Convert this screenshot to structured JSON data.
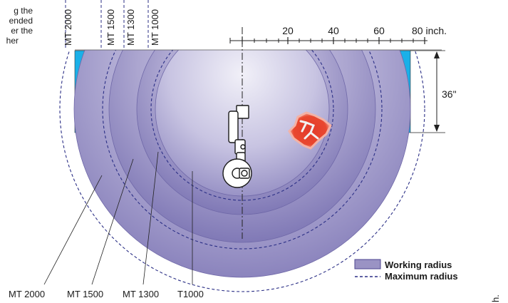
{
  "note_lines": [
    "g the",
    "ended",
    "er the",
    "her"
  ],
  "top_labels": [
    "MT 2000",
    "MT 1500",
    "MT 1300",
    "MT 1000"
  ],
  "scale": {
    "ticks": [
      "20",
      "40",
      "60",
      "80 inch."
    ]
  },
  "height_label": "36\"",
  "callouts": [
    "MT 2000",
    "MT 1500",
    "MT 1300",
    "T1000"
  ],
  "legend": {
    "working": "Working radius",
    "maximum": "Maximum radius"
  },
  "edge_text": "h.",
  "colors": {
    "working_fill": "#9a93c4",
    "side_band": "#1ab0e8",
    "dashed_line": "#2b2f86",
    "object": "#e23a2a"
  }
}
